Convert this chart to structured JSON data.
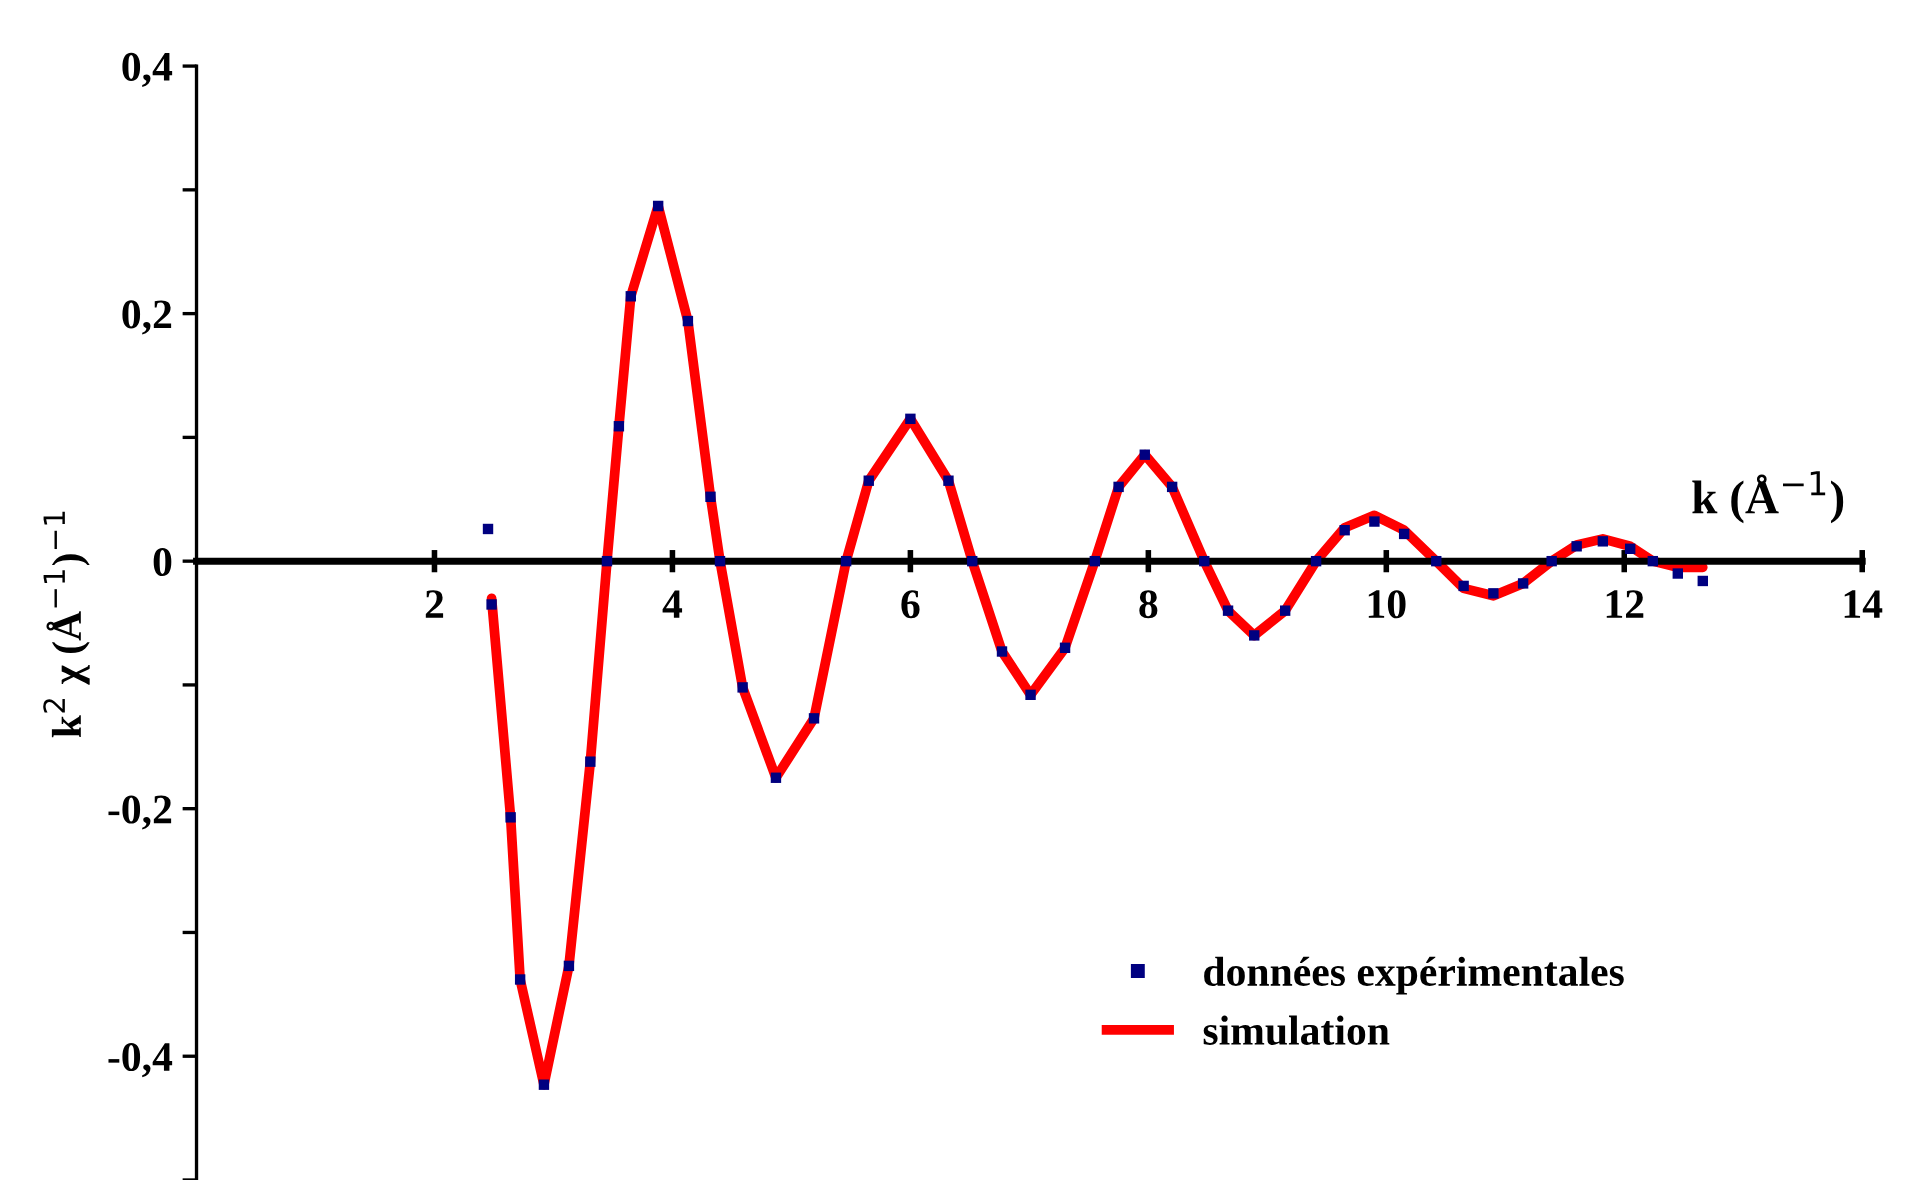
{
  "chart_data": {
    "type": "line",
    "xlabel": "k (Å$^{−1}$)",
    "ylabel": "k$^{2}$ χ (Å$^{−1}$)$^{−1}$",
    "xlim": [
      0,
      14
    ],
    "xticks": [
      2,
      4,
      6,
      8,
      10,
      12,
      14
    ],
    "ylim": [
      -0.5,
      0.4
    ],
    "yticks": [
      {
        "value": 0.4,
        "label": "0,4"
      },
      {
        "value": 0.3,
        "label": null
      },
      {
        "value": 0.2,
        "label": "0,2"
      },
      {
        "value": 0.1,
        "label": null
      },
      {
        "value": 0,
        "label": "0"
      },
      {
        "value": -0.1,
        "label": null
      },
      {
        "value": -0.2,
        "label": "-0,2"
      },
      {
        "value": -0.3,
        "label": null
      },
      {
        "value": -0.4,
        "label": "-0,4"
      },
      {
        "value": -0.5,
        "label": null
      }
    ],
    "grid": false,
    "legend": "bottom right",
    "series": [
      {
        "name": "données expérimentales",
        "type": "scatter",
        "marker": "square",
        "color": "#000080",
        "x": [
          2.45,
          2.48,
          2.64,
          2.72,
          2.92,
          3.13,
          3.31,
          3.45,
          3.55,
          3.65,
          3.88,
          4.13,
          4.32,
          4.4,
          4.59,
          4.87,
          5.19,
          5.46,
          5.65,
          6.0,
          6.32,
          6.52,
          6.77,
          7.01,
          7.3,
          7.55,
          7.75,
          7.97,
          8.2,
          8.47,
          8.67,
          8.89,
          9.15,
          9.41,
          9.65,
          9.9,
          10.15,
          10.42,
          10.65,
          10.9,
          11.15,
          11.39,
          11.6,
          11.82,
          12.05,
          12.24,
          12.45,
          12.66
        ],
        "values": [
          0.026,
          -0.035,
          -0.207,
          -0.338,
          -0.423,
          -0.327,
          -0.162,
          0,
          0.109,
          0.214,
          0.287,
          0.194,
          0.052,
          0,
          -0.102,
          -0.175,
          -0.127,
          0,
          0.065,
          0.115,
          0.065,
          0,
          -0.073,
          -0.108,
          -0.07,
          0,
          0.06,
          0.086,
          0.06,
          0,
          -0.04,
          -0.06,
          -0.04,
          0,
          0.025,
          0.032,
          0.022,
          0,
          -0.02,
          -0.026,
          -0.018,
          0,
          0.012,
          0.016,
          0.01,
          0,
          -0.01,
          -0.016
        ]
      },
      {
        "name": "simulation",
        "line_style": "solid",
        "color": "#ff0000",
        "x": [
          2.48,
          2.64,
          2.72,
          2.92,
          3.13,
          3.31,
          3.45,
          3.55,
          3.65,
          3.88,
          4.13,
          4.32,
          4.4,
          4.59,
          4.87,
          5.19,
          5.46,
          5.65,
          6.0,
          6.32,
          6.52,
          6.77,
          7.01,
          7.3,
          7.55,
          7.75,
          7.97,
          8.2,
          8.47,
          8.67,
          8.89,
          9.15,
          9.41,
          9.65,
          9.9,
          10.15,
          10.42,
          10.65,
          10.9,
          11.15,
          11.39,
          11.6,
          11.82,
          12.05,
          12.24,
          12.45,
          12.66
        ],
        "values": [
          -0.03,
          -0.207,
          -0.338,
          -0.423,
          -0.327,
          -0.162,
          0,
          0.109,
          0.214,
          0.287,
          0.194,
          0.052,
          0,
          -0.102,
          -0.175,
          -0.127,
          0,
          0.065,
          0.115,
          0.065,
          0,
          -0.073,
          -0.108,
          -0.07,
          0,
          0.06,
          0.086,
          0.06,
          0,
          -0.04,
          -0.06,
          -0.04,
          0,
          0.027,
          0.037,
          0.025,
          0,
          -0.022,
          -0.028,
          -0.018,
          0,
          0.013,
          0.018,
          0.012,
          0,
          -0.005,
          -0.005
        ]
      }
    ]
  }
}
